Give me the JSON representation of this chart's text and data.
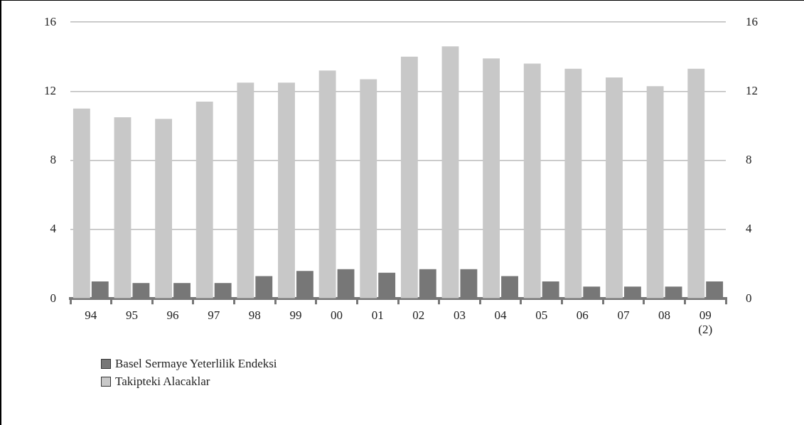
{
  "chart_data": {
    "type": "bar",
    "categories": [
      "94",
      "95",
      "96",
      "97",
      "98",
      "99",
      "00",
      "01",
      "02",
      "03",
      "04",
      "05",
      "06",
      "07",
      "08",
      "09\n(2)"
    ],
    "series": [
      {
        "name": "Basel Sermaye Yeterlilik Endeksi",
        "color": "#777777",
        "values": [
          1.0,
          0.9,
          0.9,
          0.9,
          1.3,
          1.6,
          1.7,
          1.5,
          1.7,
          1.7,
          1.3,
          1.0,
          0.7,
          0.7,
          0.7,
          1.0
        ]
      },
      {
        "name": "Takipteki Alacaklar",
        "color": "#c8c8c8",
        "values": [
          11.0,
          10.5,
          10.4,
          11.4,
          12.5,
          12.5,
          13.2,
          12.7,
          14.0,
          14.6,
          13.9,
          13.6,
          13.3,
          12.8,
          12.3,
          13.3
        ]
      }
    ],
    "ylim": [
      0,
      16
    ],
    "yticks": [
      0,
      4,
      8,
      12,
      16
    ],
    "y2lim": [
      0,
      16
    ],
    "y2ticks": [
      0,
      4,
      8,
      12,
      16
    ],
    "grid": "y",
    "legend": "bottom left"
  }
}
